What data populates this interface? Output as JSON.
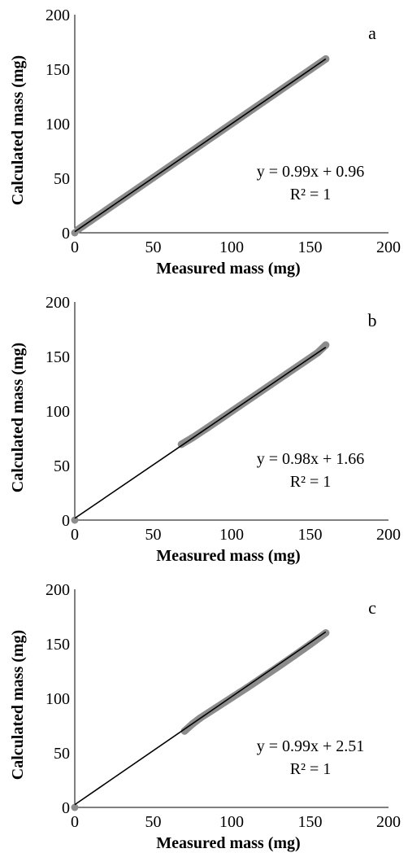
{
  "chart_data": [
    {
      "type": "scatter",
      "panel_label": "a",
      "xlabel": "Measured mass (mg)",
      "ylabel": "Calculated mass (mg)",
      "xlim": [
        0,
        200
      ],
      "ylim": [
        0,
        200
      ],
      "xticks": [
        "0",
        "50",
        "100",
        "150",
        "200"
      ],
      "yticks": [
        "0",
        "50",
        "100",
        "150",
        "200"
      ],
      "grid": false,
      "series": [
        {
          "points": [
            [
              0,
              0
            ],
            [
              2,
              2.9
            ],
            [
              5,
              5.9
            ],
            [
              10,
              10.9
            ],
            [
              20,
              20.8
            ],
            [
              30,
              30.7
            ],
            [
              40,
              40.6
            ],
            [
              50,
              50.5
            ],
            [
              60,
              60.4
            ],
            [
              70,
              70.3
            ],
            [
              80,
              80.2
            ],
            [
              90,
              90.1
            ],
            [
              100,
              100.0
            ],
            [
              110,
              109.9
            ],
            [
              120,
              119.8
            ],
            [
              130,
              129.7
            ],
            [
              140,
              139.6
            ],
            [
              150,
              149.5
            ],
            [
              160,
              159.4
            ]
          ],
          "color": "#8c8c8c"
        }
      ],
      "trendline": {
        "x": [
          0,
          160
        ],
        "slope": 0.99,
        "intercept": 0.96,
        "color": "#000000"
      },
      "equation": "y = 0.99x + 0.96",
      "r_squared": "R² = 1"
    },
    {
      "type": "scatter",
      "panel_label": "b",
      "xlabel": "Measured mass (mg)",
      "ylabel": "Calculated mass (mg)",
      "xlim": [
        0,
        200
      ],
      "ylim": [
        0,
        200
      ],
      "xticks": [
        "0",
        "50",
        "100",
        "150",
        "200"
      ],
      "yticks": [
        "0",
        "50",
        "100",
        "150",
        "200"
      ],
      "grid": false,
      "series": [
        {
          "points": [
            [
              0,
              0
            ],
            [
              68,
              69.5
            ],
            [
              75,
              75.5
            ],
            [
              85,
              85
            ],
            [
              95,
              94.8
            ],
            [
              105,
              104.6
            ],
            [
              115,
              114.4
            ],
            [
              125,
              124.2
            ],
            [
              135,
              134
            ],
            [
              145,
              143.8
            ],
            [
              155,
              153.6
            ],
            [
              160,
              160.5
            ]
          ],
          "color": "#8c8c8c"
        }
      ],
      "trendline": {
        "x": [
          0,
          160
        ],
        "slope": 0.98,
        "intercept": 1.66,
        "color": "#000000"
      },
      "equation": "y = 0.98x + 1.66",
      "r_squared": "R² = 1"
    },
    {
      "type": "scatter",
      "panel_label": "c",
      "xlabel": "Measured mass (mg)",
      "ylabel": "Calculated mass (mg)",
      "xlim": [
        0,
        200
      ],
      "ylim": [
        0,
        200
      ],
      "xticks": [
        "0",
        "50",
        "100",
        "150",
        "200"
      ],
      "yticks": [
        "0",
        "50",
        "100",
        "150",
        "200"
      ],
      "grid": false,
      "series": [
        {
          "points": [
            [
              0,
              0
            ],
            [
              70,
              70
            ],
            [
              75,
              76.5
            ],
            [
              80,
              82
            ],
            [
              90,
              91.3
            ],
            [
              100,
              100.6
            ],
            [
              110,
              109.9
            ],
            [
              120,
              119.6
            ],
            [
              130,
              129.3
            ],
            [
              140,
              139.2
            ],
            [
              150,
              149.4
            ],
            [
              160,
              160
            ]
          ],
          "color": "#8c8c8c"
        }
      ],
      "trendline": {
        "x": [
          0,
          160
        ],
        "slope": 0.99,
        "intercept": 2.51,
        "color": "#000000"
      },
      "equation": "y = 0.99x + 2.51",
      "r_squared": "R² = 1"
    }
  ]
}
